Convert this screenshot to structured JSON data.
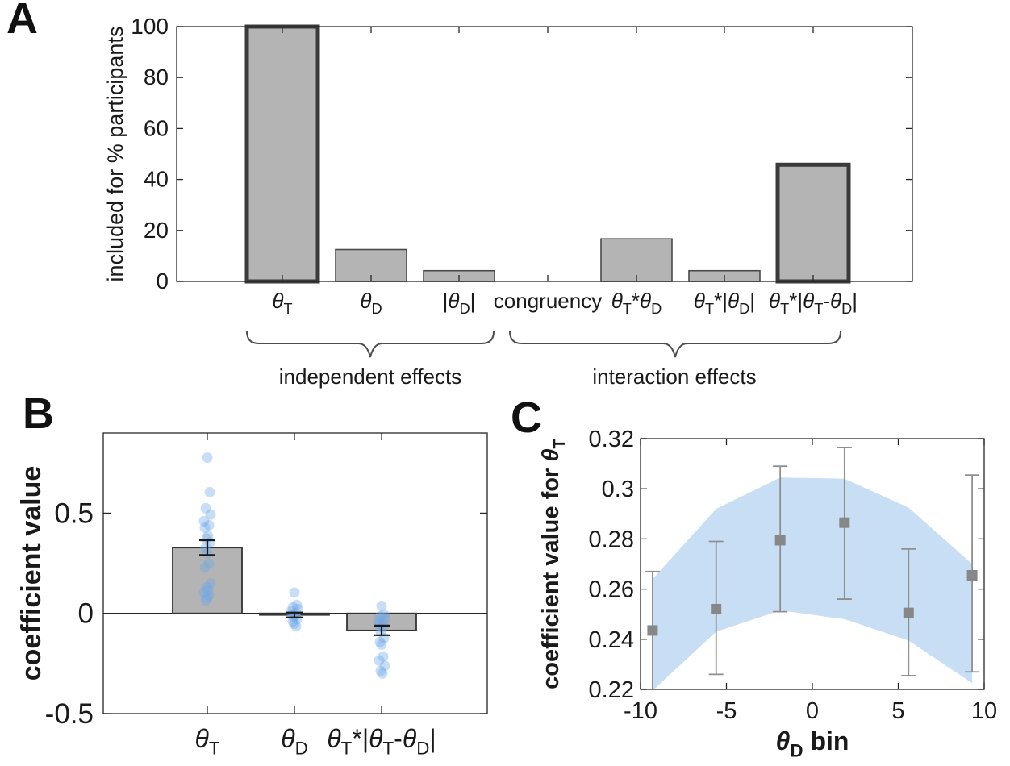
{
  "panels": {
    "A": {
      "letter": "A",
      "ylabel": "included for % participants",
      "groups": [
        {
          "label": "independent effects"
        },
        {
          "label": "interaction effects"
        }
      ]
    },
    "B": {
      "letter": "B",
      "ylabel": "coefficient value"
    },
    "C": {
      "letter": "C",
      "ylabel": "coefficient value for θ_T",
      "xlabel": "θ_D bin"
    }
  },
  "colors": {
    "bar_fill": "#b4b4b4",
    "bar_edge": "#4a4a4a",
    "bold_bar_edge": "#3a3a3a",
    "axis": "#262626",
    "scatter_dot": "#6ea8e8",
    "band_fill": "#c7def5",
    "square_marker": "#878787",
    "errorbar_gray": "#8f8f8f",
    "errorbar_dark": "#1a1a1a",
    "brace": "#4d4d4d",
    "text": "#1a1a1a"
  },
  "chart_data": [
    {
      "id": "A",
      "type": "bar",
      "ylabel": "included for % participants",
      "categories": [
        "θ_T",
        "θ_D",
        "|θ_D|",
        "congruency",
        "θ_T*θ_D",
        "θ_T*|θ_D|",
        "θ_T*|θ_T-θ_D|"
      ],
      "values": [
        100,
        12.5,
        4.2,
        0,
        16.7,
        4.2,
        45.8
      ],
      "bold_outline": [
        true,
        false,
        false,
        false,
        false,
        false,
        true
      ],
      "ylim": [
        0,
        100
      ],
      "yticks": [
        0,
        20,
        40,
        60,
        80,
        100
      ],
      "ytick_labels": [
        "0",
        "20",
        "40",
        "60",
        "80",
        "100"
      ],
      "group_brackets": [
        {
          "label": "independent effects",
          "category_range": [
            0,
            2
          ]
        },
        {
          "label": "interaction effects",
          "category_range": [
            3,
            6
          ]
        }
      ]
    },
    {
      "id": "B",
      "type": "bar+scatter",
      "ylabel": "coefficient value",
      "categories": [
        "θ_T",
        "θ_D",
        "θ_T*|θ_T-θ_D|"
      ],
      "values": [
        0.328,
        -0.008,
        -0.085
      ],
      "errors": [
        0.037,
        0.012,
        0.024
      ],
      "scatter": [
        [
          0.777,
          0.605,
          0.525,
          0.493,
          0.46,
          0.44,
          0.427,
          0.387,
          0.374,
          0.354,
          0.328,
          0.3,
          0.249,
          0.229,
          0.15,
          0.13,
          0.117,
          0.104,
          0.09,
          0.077,
          0.064
        ],
        [
          0.104,
          0.042,
          0.03,
          0.022,
          0.01,
          0.002,
          -0.005,
          -0.012,
          -0.02,
          -0.028,
          -0.04,
          -0.052,
          -0.064
        ],
        [
          0.037,
          -0.005,
          -0.015,
          -0.026,
          -0.039,
          -0.048,
          -0.059,
          -0.07,
          -0.09,
          -0.124,
          -0.143,
          -0.156,
          -0.215,
          -0.235,
          -0.261,
          -0.287,
          -0.3
        ]
      ],
      "ylim": [
        -0.5,
        0.9
      ],
      "yticks": [
        0.5,
        0,
        -0.5
      ],
      "ytick_labels": [
        "0.5",
        "0",
        "-0.5"
      ]
    },
    {
      "id": "C",
      "type": "errorbar+band",
      "ylabel": "coefficient value for θ_T",
      "xlabel": "θ_D bin",
      "x": [
        -9.3,
        -5.6,
        -1.87,
        1.87,
        5.6,
        9.3
      ],
      "y": [
        0.2435,
        0.252,
        0.2795,
        0.2865,
        0.2505,
        0.2655
      ],
      "err_low": [
        0.2195,
        0.226,
        0.251,
        0.256,
        0.2255,
        0.227
      ],
      "err_high": [
        0.267,
        0.279,
        0.309,
        0.3165,
        0.276,
        0.3055
      ],
      "band_x": [
        -9.3,
        -5.6,
        -1.87,
        1.87,
        5.6,
        9.3
      ],
      "band_upper": [
        0.264,
        0.292,
        0.3045,
        0.304,
        0.2925,
        0.27
      ],
      "band_lower": [
        0.2195,
        0.243,
        0.2515,
        0.248,
        0.2395,
        0.2225
      ],
      "xlim": [
        -10,
        10
      ],
      "ylim": [
        0.22,
        0.32
      ],
      "xticks": [
        -10,
        -5,
        0,
        5,
        10
      ],
      "xtick_labels": [
        "-10",
        "-5",
        "0",
        "5",
        "10"
      ],
      "yticks": [
        0.22,
        0.24,
        0.26,
        0.28,
        0.3,
        0.32
      ],
      "ytick_labels": [
        "0.22",
        "0.24",
        "0.26",
        "0.28",
        "0.3",
        "0.32"
      ]
    }
  ]
}
